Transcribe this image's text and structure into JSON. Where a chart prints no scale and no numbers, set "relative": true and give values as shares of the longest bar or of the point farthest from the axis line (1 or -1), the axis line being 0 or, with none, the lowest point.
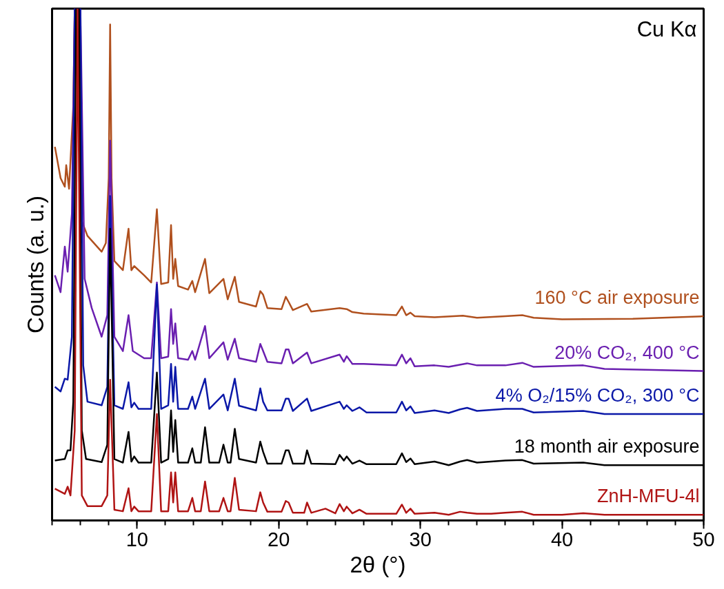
{
  "chart_data": {
    "type": "line",
    "relative": true,
    "xlabel": "2θ (°)",
    "ylabel": "Counts (a. u.)",
    "xlim": [
      4,
      50
    ],
    "xticks": [
      10,
      20,
      30,
      40,
      50
    ],
    "annotations": [
      "Cu Kα"
    ],
    "series": [
      {
        "name": "160 °C air exposure",
        "color": "#b0501e",
        "x": [
          4.2,
          4.6,
          4.9,
          5.0,
          5.2,
          5.5,
          5.6,
          5.9,
          6.1,
          6.5,
          7.5,
          7.8,
          8.0,
          8.1,
          8.2,
          8.4,
          9.0,
          9.4,
          9.6,
          9.8,
          10.5,
          11.0,
          11.4,
          11.7,
          12.2,
          12.4,
          12.55,
          12.7,
          12.9,
          13.6,
          13.9,
          14.1,
          14.8,
          15.1,
          16.1,
          16.4,
          16.9,
          17.2,
          18.4,
          18.7,
          18.9,
          19.2,
          20.2,
          20.5,
          20.7,
          21.0,
          22.0,
          22.3,
          24.3,
          24.8,
          25.2,
          26,
          28.3,
          28.7,
          29.0,
          29.3,
          29.6,
          31,
          33,
          34,
          36,
          37.2,
          38,
          40,
          45,
          50
        ],
        "values": [
          0.73,
          0.669,
          0.652,
          0.694,
          0.648,
          0.81,
          1,
          1,
          0.585,
          0.556,
          0.525,
          0.542,
          0.669,
          0.969,
          0.669,
          0.507,
          0.489,
          0.57,
          0.489,
          0.497,
          0.479,
          0.465,
          0.608,
          0.462,
          0.465,
          0.577,
          0.472,
          0.511,
          0.458,
          0.451,
          0.468,
          0.446,
          0.511,
          0.444,
          0.472,
          0.432,
          0.476,
          0.427,
          0.418,
          0.448,
          0.441,
          0.415,
          0.413,
          0.437,
          0.427,
          0.411,
          0.423,
          0.408,
          0.415,
          0.413,
          0.407,
          0.404,
          0.401,
          0.418,
          0.401,
          0.406,
          0.399,
          0.397,
          0.4,
          0.396,
          0.399,
          0.401,
          0.396,
          0.393,
          0.394,
          0.399
        ]
      },
      {
        "name": "20% CO₂, 400 °C",
        "color": "#6a1fb0",
        "x": [
          4.2,
          4.6,
          4.9,
          5.1,
          5.4,
          5.6,
          6.0,
          6.3,
          6.8,
          7.5,
          7.9,
          8.1,
          8.4,
          9.0,
          9.4,
          9.7,
          10.5,
          11.0,
          11.4,
          11.7,
          12.2,
          12.4,
          12.55,
          12.7,
          12.9,
          13.6,
          13.9,
          14.1,
          14.8,
          15.1,
          16.1,
          16.4,
          16.9,
          17.2,
          18.4,
          18.7,
          18.9,
          19.2,
          20.2,
          20.5,
          20.7,
          21.0,
          22.0,
          22.3,
          24.3,
          24.6,
          24.8,
          25.2,
          26,
          28.3,
          28.7,
          29.0,
          29.3,
          29.6,
          31,
          32,
          33.3,
          34,
          36,
          37.2,
          38,
          41.5,
          43,
          50
        ],
        "values": [
          0.479,
          0.446,
          0.535,
          0.486,
          0.599,
          1,
          1,
          0.472,
          0.415,
          0.359,
          0.401,
          0.742,
          0.359,
          0.331,
          0.401,
          0.331,
          0.317,
          0.317,
          0.465,
          0.317,
          0.32,
          0.413,
          0.345,
          0.385,
          0.317,
          0.314,
          0.331,
          0.314,
          0.38,
          0.317,
          0.348,
          0.314,
          0.355,
          0.317,
          0.31,
          0.345,
          0.331,
          0.31,
          0.307,
          0.334,
          0.334,
          0.307,
          0.328,
          0.307,
          0.324,
          0.31,
          0.321,
          0.306,
          0.306,
          0.303,
          0.324,
          0.307,
          0.317,
          0.301,
          0.303,
          0.3,
          0.307,
          0.303,
          0.303,
          0.308,
          0.3,
          0.303,
          0.296,
          0.292
        ]
      },
      {
        "name": "4% O₂/15% CO₂, 300 °C",
        "color": "#0b18a8",
        "x": [
          4.2,
          4.6,
          4.9,
          5.1,
          5.4,
          5.6,
          6.0,
          6.2,
          6.5,
          7.5,
          7.9,
          8.1,
          8.4,
          9.0,
          9.4,
          9.6,
          9.8,
          10.1,
          11.0,
          11.4,
          11.7,
          12.2,
          12.4,
          12.55,
          12.7,
          12.9,
          13.6,
          13.9,
          14.1,
          14.8,
          15.1,
          16.1,
          16.4,
          16.9,
          17.2,
          18.4,
          18.7,
          18.9,
          19.2,
          20.2,
          20.5,
          20.7,
          21.0,
          22.0,
          22.3,
          24.3,
          24.6,
          24.8,
          25.2,
          25.7,
          26.2,
          28.3,
          28.7,
          29.0,
          29.3,
          29.6,
          31,
          32,
          32.8,
          33.3,
          34,
          36,
          37.2,
          38,
          41.5,
          43,
          50
        ],
        "values": [
          0.261,
          0.252,
          0.277,
          0.275,
          0.359,
          1,
          1,
          0.303,
          0.232,
          0.225,
          0.261,
          0.634,
          0.225,
          0.218,
          0.27,
          0.221,
          0.23,
          0.218,
          0.218,
          0.461,
          0.218,
          0.225,
          0.306,
          0.232,
          0.3,
          0.218,
          0.218,
          0.242,
          0.218,
          0.277,
          0.218,
          0.246,
          0.215,
          0.277,
          0.224,
          0.215,
          0.258,
          0.232,
          0.215,
          0.215,
          0.238,
          0.238,
          0.214,
          0.238,
          0.214,
          0.232,
          0.218,
          0.225,
          0.214,
          0.221,
          0.211,
          0.211,
          0.232,
          0.215,
          0.223,
          0.21,
          0.215,
          0.21,
          0.217,
          0.22,
          0.214,
          0.218,
          0.218,
          0.211,
          0.214,
          0.208,
          0.208
        ]
      },
      {
        "name": "18 month air exposure",
        "color": "#000000",
        "x": [
          4.2,
          4.9,
          5.1,
          5.3,
          5.5,
          5.7,
          5.9,
          6.1,
          6.4,
          7.5,
          7.9,
          8.1,
          8.4,
          9.0,
          9.4,
          9.6,
          9.8,
          10.1,
          11.0,
          11.4,
          11.7,
          12.2,
          12.4,
          12.55,
          12.7,
          12.9,
          13.6,
          13.9,
          14.1,
          14.5,
          14.8,
          15.1,
          15.8,
          16.1,
          16.4,
          16.6,
          16.9,
          17.2,
          18.4,
          18.7,
          18.9,
          19.2,
          20.2,
          20.5,
          20.7,
          21.0,
          21.8,
          22.0,
          22.3,
          24.0,
          24.3,
          24.6,
          24.8,
          25.2,
          25.7,
          26.2,
          28.3,
          28.7,
          29.0,
          29.3,
          29.6,
          31,
          32,
          32.8,
          33.3,
          34,
          36,
          37.2,
          38,
          41.5,
          43,
          50
        ],
        "values": [
          0.117,
          0.12,
          0.137,
          0.137,
          0.232,
          1,
          1,
          0.176,
          0.12,
          0.114,
          0.148,
          0.57,
          0.12,
          0.113,
          0.173,
          0.115,
          0.125,
          0.113,
          0.113,
          0.289,
          0.113,
          0.12,
          0.215,
          0.134,
          0.196,
          0.113,
          0.113,
          0.141,
          0.113,
          0.113,
          0.182,
          0.113,
          0.113,
          0.148,
          0.113,
          0.113,
          0.179,
          0.12,
          0.113,
          0.154,
          0.134,
          0.111,
          0.111,
          0.137,
          0.137,
          0.111,
          0.111,
          0.137,
          0.111,
          0.11,
          0.128,
          0.117,
          0.125,
          0.111,
          0.117,
          0.11,
          0.11,
          0.131,
          0.114,
          0.121,
          0.11,
          0.115,
          0.108,
          0.115,
          0.118,
          0.113,
          0.117,
          0.118,
          0.111,
          0.113,
          0.108,
          0.108
        ]
      },
      {
        "name": "ZnH-MFU-4l",
        "color": "#b01414",
        "x": [
          4.2,
          4.9,
          5.1,
          5.3,
          5.6,
          5.8,
          6.1,
          6.5,
          7.5,
          7.9,
          8.1,
          8.4,
          9.0,
          9.4,
          9.6,
          9.8,
          10.1,
          11.0,
          11.4,
          11.7,
          12.2,
          12.4,
          12.55,
          12.7,
          12.9,
          13.6,
          13.9,
          14.1,
          14.5,
          14.8,
          15.1,
          15.8,
          16.1,
          16.4,
          16.6,
          16.9,
          17.2,
          18.4,
          18.7,
          18.9,
          19.2,
          20.2,
          20.5,
          20.7,
          21.0,
          21.8,
          22.0,
          22.3,
          23.3,
          24.0,
          24.3,
          24.6,
          24.8,
          25.2,
          25.7,
          26.2,
          28.3,
          28.7,
          29.0,
          29.3,
          29.6,
          31,
          32,
          32.8,
          33.3,
          34,
          35,
          36,
          37.2,
          38,
          40,
          41.5,
          43,
          50
        ],
        "values": [
          0.062,
          0.052,
          0.066,
          0.049,
          0.176,
          1,
          0.049,
          0.028,
          0.028,
          0.049,
          0.275,
          0.021,
          0.018,
          0.063,
          0.018,
          0.027,
          0.018,
          0.018,
          0.208,
          0.018,
          0.018,
          0.094,
          0.035,
          0.094,
          0.018,
          0.018,
          0.044,
          0.018,
          0.018,
          0.076,
          0.018,
          0.018,
          0.044,
          0.018,
          0.018,
          0.083,
          0.021,
          0.018,
          0.055,
          0.035,
          0.017,
          0.017,
          0.038,
          0.035,
          0.015,
          0.015,
          0.035,
          0.015,
          0.023,
          0.014,
          0.032,
          0.018,
          0.027,
          0.014,
          0.021,
          0.013,
          0.013,
          0.031,
          0.015,
          0.023,
          0.013,
          0.015,
          0.011,
          0.017,
          0.015,
          0.013,
          0.013,
          0.015,
          0.017,
          0.011,
          0.011,
          0.014,
          0.011,
          0.011
        ]
      }
    ]
  }
}
